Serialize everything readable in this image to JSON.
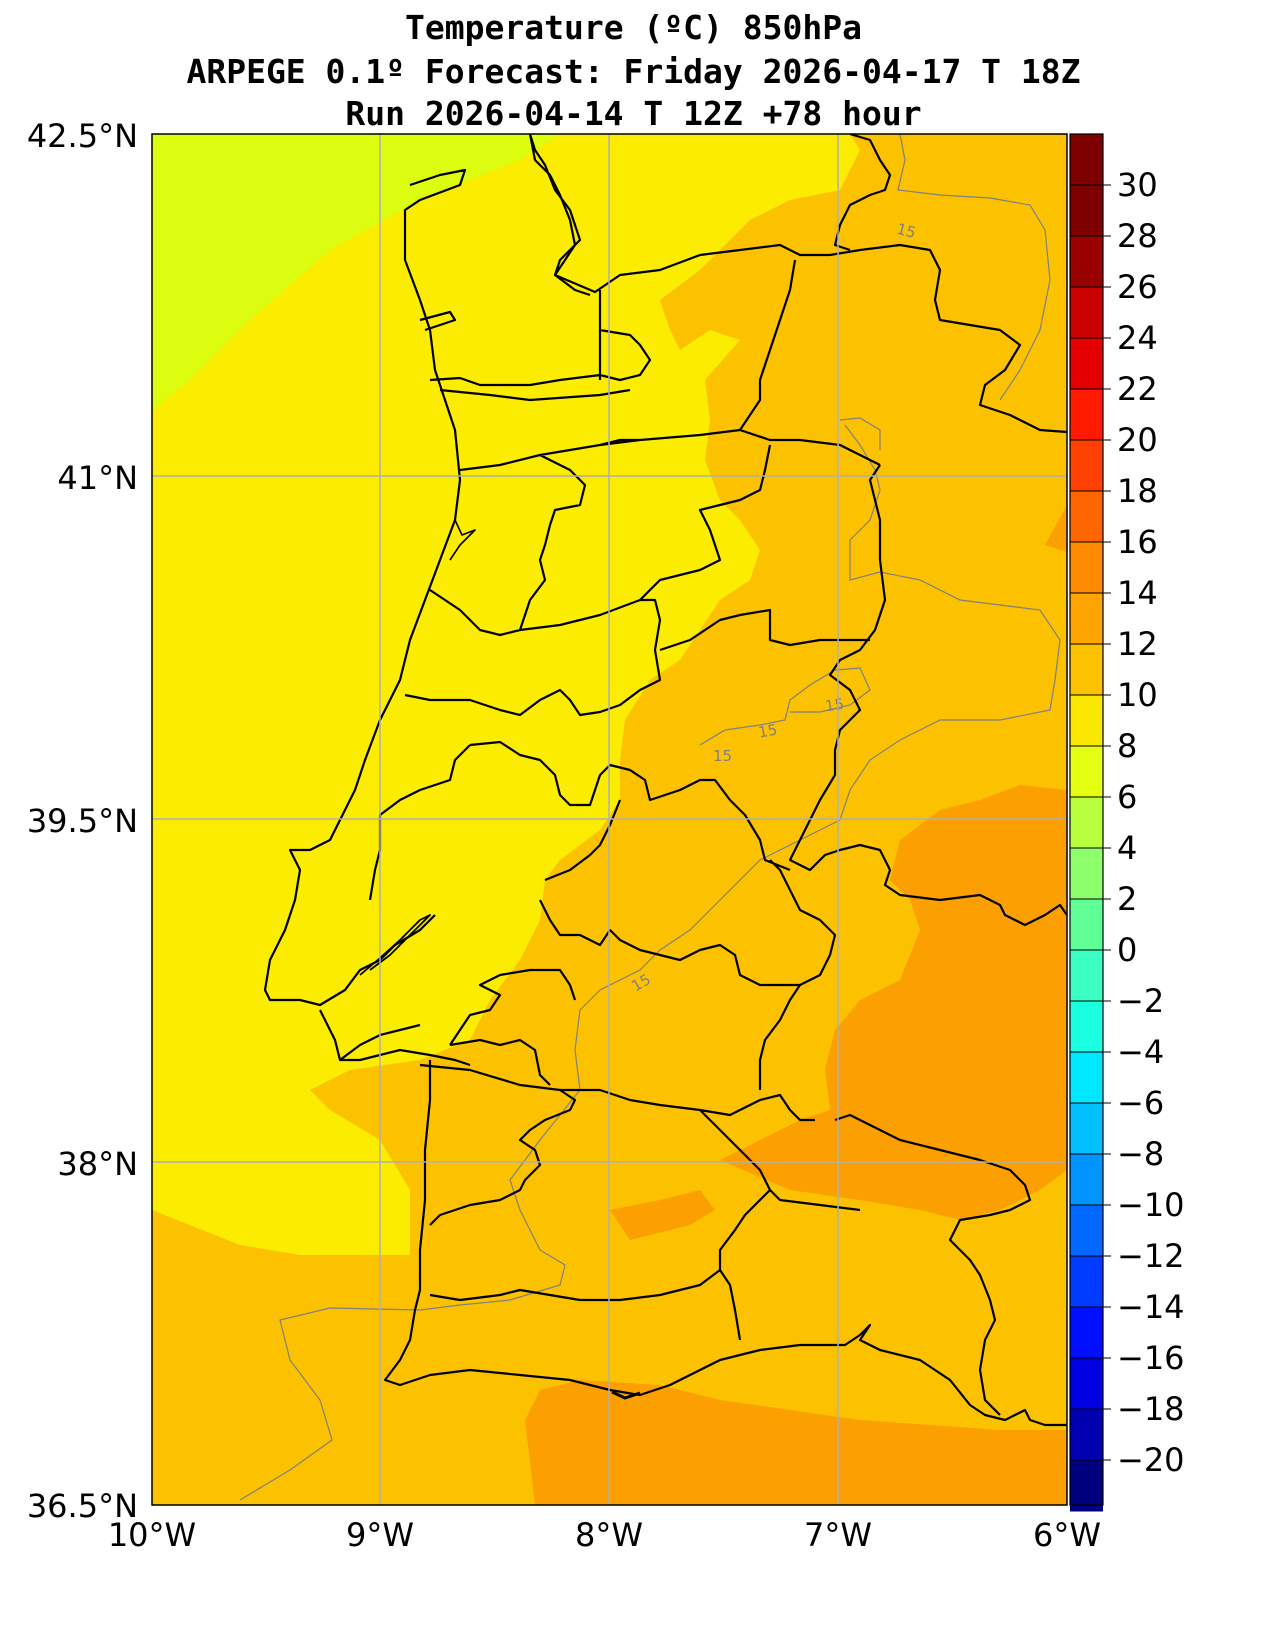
{
  "title": {
    "line1": "Temperature (ºC) 850hPa",
    "line2": "ARPEGE 0.1º Forecast: Friday 2026-04-17 T 18Z",
    "line3": "Run 2026-04-14 T 12Z +78 hour"
  },
  "map": {
    "lat_range": [
      36.5,
      42.5
    ],
    "lon_range": [
      -10,
      -6
    ],
    "lat_ticks": [
      "42.5°N",
      "41°N",
      "39.5°N",
      "38°N",
      "36.5°N"
    ],
    "lon_ticks": [
      "10°W",
      "9°W",
      "8°W",
      "7°W",
      "6°W"
    ],
    "grid": true,
    "contour_labels": [
      "15",
      "15",
      "15",
      "15",
      "15"
    ],
    "colors": {
      "t8_10": "#dcfc10",
      "t10_12": "#f6f204",
      "t12_14": "#fbec00",
      "t14_16": "#fcc200",
      "t16_18": "#fc9f00",
      "boundary": "#000000",
      "grid": "#b0b0b0",
      "contour": "#808080"
    }
  },
  "colorbar": {
    "labels": [
      "30",
      "28",
      "26",
      "24",
      "22",
      "20",
      "18",
      "16",
      "14",
      "12",
      "10",
      "8",
      "6",
      "4",
      "2",
      "0",
      "−2",
      "−4",
      "−6",
      "−8",
      "−10",
      "−12",
      "−14",
      "−16",
      "−18",
      "−20"
    ],
    "colors": [
      "#7f0000",
      "#990000",
      "#c80000",
      "#e40000",
      "#ff1a00",
      "#ff4000",
      "#ff6600",
      "#ff8c00",
      "#ffa400",
      "#fcc200",
      "#fbe800",
      "#e4ff12",
      "#b9ff3d",
      "#8cff6a",
      "#60ff96",
      "#3cffc3",
      "#1affe0",
      "#00e8ff",
      "#00c0ff",
      "#0094ff",
      "#0068ff",
      "#003cff",
      "#0010ff",
      "#0000e0",
      "#0000b0",
      "#00007f"
    ]
  }
}
